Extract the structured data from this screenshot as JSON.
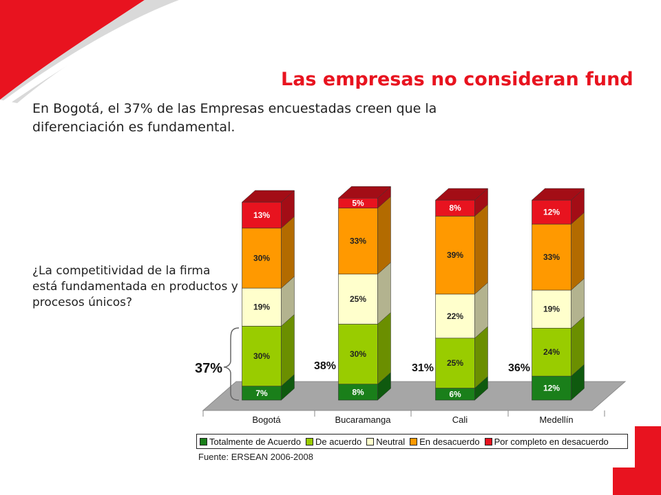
{
  "title": "Las empresas no consideran fundamental diferenciar sus productos, ni sus procesos",
  "intro": "En Bogotá, el 37% de las Empresas encuestadas creen que la diferenciación es fundamental.",
  "question": "¿La competitividad de la firma está fundamentada en productos y procesos únicos?",
  "source": "Fuente: ERSEAN 2006-2008",
  "colors": {
    "accent": "#e8131f",
    "series": [
      "#1a7f1a",
      "#99cc00",
      "#ffffcc",
      "#ff9900",
      "#e8131f"
    ]
  },
  "chart_data": {
    "type": "bar",
    "stacked": true,
    "categories": [
      "Bogotá",
      "Bucaramanga",
      "Cali",
      "Medellín"
    ],
    "series": [
      {
        "name": "Totalmente de Acuerdo",
        "values": [
          7,
          8,
          6,
          12
        ]
      },
      {
        "name": "De acuerdo",
        "values": [
          30,
          30,
          25,
          24
        ]
      },
      {
        "name": "Neutral",
        "values": [
          19,
          25,
          22,
          19
        ]
      },
      {
        "name": "En desacuerdo",
        "values": [
          30,
          33,
          39,
          33
        ]
      },
      {
        "name": "Por completo en desacuerdo",
        "values": [
          13,
          5,
          8,
          12
        ]
      }
    ],
    "agreement_totals": [
      "37%",
      "38%",
      "31%",
      "36%"
    ],
    "legend_position": "bottom",
    "grid": false
  }
}
